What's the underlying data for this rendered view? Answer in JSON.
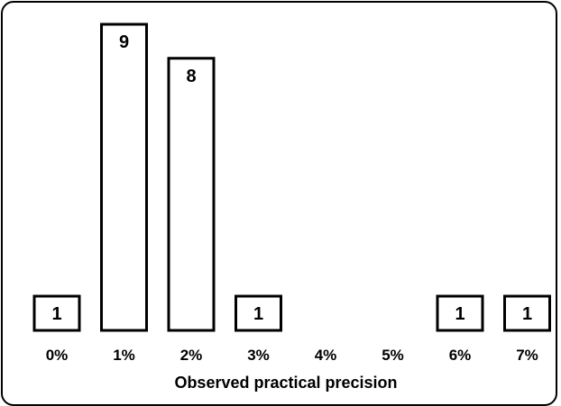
{
  "chart_data": {
    "type": "bar",
    "title": "",
    "xlabel": "Observed practical precision",
    "ylabel": "",
    "categories": [
      "0%",
      "1%",
      "2%",
      "3%",
      "4%",
      "5%",
      "6%",
      "7%"
    ],
    "values": [
      1,
      9,
      8,
      1,
      0,
      0,
      1,
      1
    ],
    "ylim": [
      0,
      9
    ],
    "grid": false,
    "legend": "none",
    "colors": {
      "bar_fill": "#ffffff",
      "bar_stroke": "#000000"
    }
  }
}
